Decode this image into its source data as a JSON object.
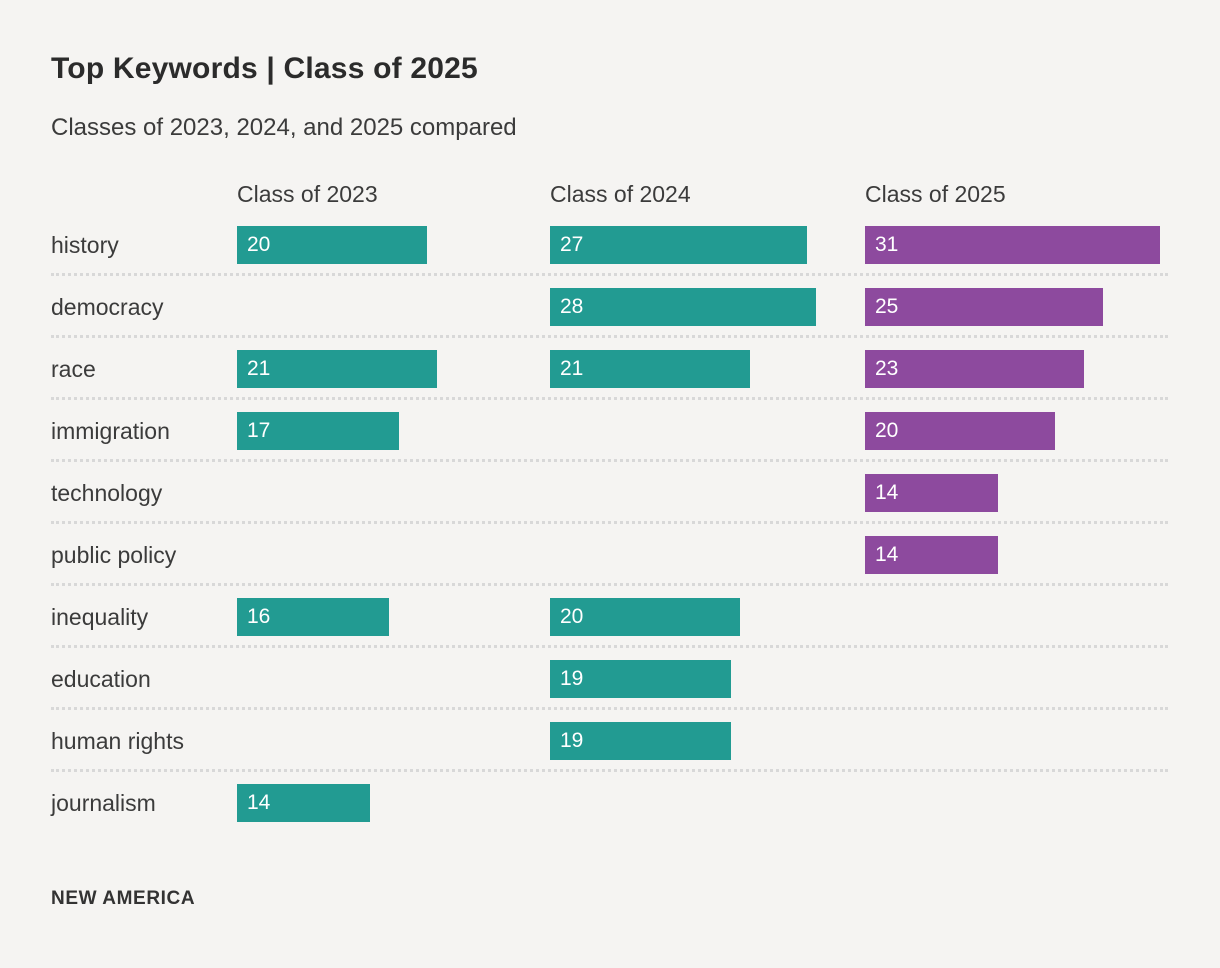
{
  "title": "Top Keywords | Class of 2025",
  "subtitle": "Classes of 2023, 2024, and 2025 compared",
  "source": "NEW AMERICA",
  "colors": {
    "teal": "#229b92",
    "purple": "#8d4a9e",
    "background": "#f5f4f2",
    "title_text": "#2b2b2b",
    "label_text": "#3b3b3b",
    "separator": "#d8d8d8",
    "bar_value_text": "#ffffff"
  },
  "chart_data": {
    "type": "bar",
    "orientation": "horizontal",
    "title": "Top Keywords | Class of 2025",
    "subtitle": "Classes of 2023, 2024, and 2025 compared",
    "source": "NEW AMERICA",
    "categories": [
      "history",
      "democracy",
      "race",
      "immigration",
      "technology",
      "public policy",
      "inequality",
      "education",
      "human rights",
      "journalism"
    ],
    "series": [
      {
        "name": "Class of 2023",
        "color": "#229b92",
        "values": [
          20,
          null,
          21,
          17,
          null,
          null,
          16,
          null,
          null,
          14
        ]
      },
      {
        "name": "Class of 2024",
        "color": "#229b92",
        "values": [
          27,
          28,
          21,
          null,
          null,
          null,
          20,
          19,
          19,
          null
        ]
      },
      {
        "name": "Class of 2025",
        "color": "#8d4a9e",
        "values": [
          31,
          25,
          23,
          20,
          14,
          14,
          null,
          null,
          null,
          null
        ]
      }
    ],
    "value_axis_max": 31,
    "data_labels": "inside-bar-start",
    "legend_position": "column-headers",
    "grid": "dotted-row-separators"
  }
}
